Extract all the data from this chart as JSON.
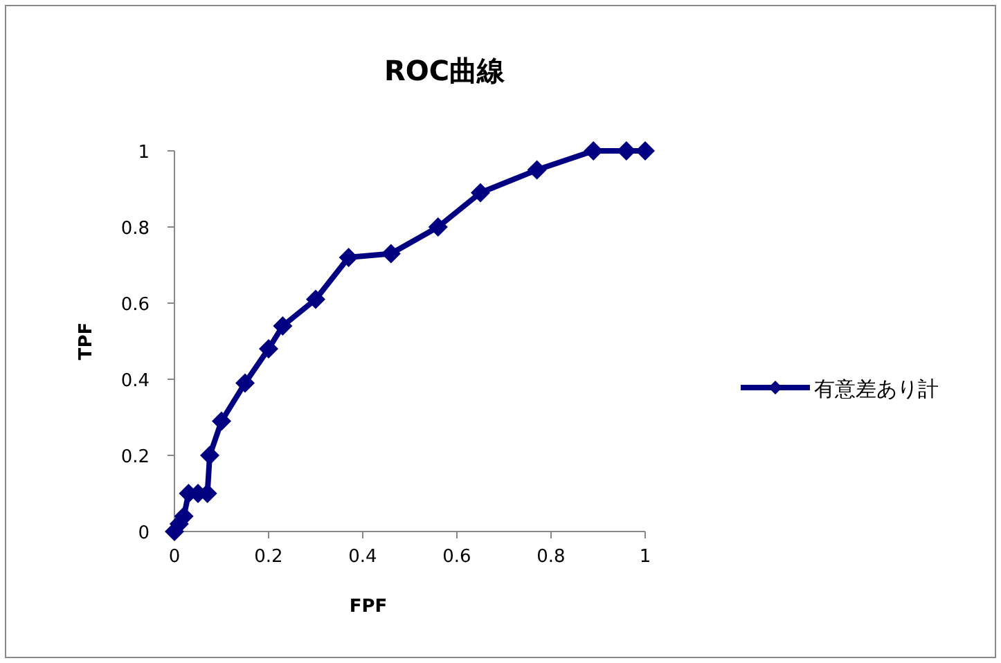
{
  "chart_data": {
    "type": "line",
    "title": "ROC曲線",
    "xlabel": "FPF",
    "ylabel": "TPF",
    "x": [
      0,
      0.01,
      0.02,
      0.03,
      0.05,
      0.07,
      0.075,
      0.1,
      0.15,
      0.2,
      0.23,
      0.3,
      0.37,
      0.46,
      0.56,
      0.65,
      0.77,
      0.89,
      0.96,
      1
    ],
    "series": [
      {
        "name": "有意差あり計",
        "color": "#000080",
        "values": [
          0,
          0.02,
          0.04,
          0.1,
          0.1,
          0.1,
          0.2,
          0.29,
          0.39,
          0.48,
          0.54,
          0.61,
          0.72,
          0.73,
          0.8,
          0.89,
          0.95,
          1,
          1,
          1
        ]
      }
    ],
    "xlim": [
      0,
      1
    ],
    "xticks": [
      0,
      0.2,
      0.4,
      0.6,
      0.8,
      1
    ],
    "ylim": [
      0,
      1
    ],
    "yticks": [
      0,
      0.2,
      0.4,
      0.6,
      0.8,
      1
    ],
    "grid": false,
    "legend": "right",
    "marker": "diamond",
    "line_style": "solid"
  }
}
